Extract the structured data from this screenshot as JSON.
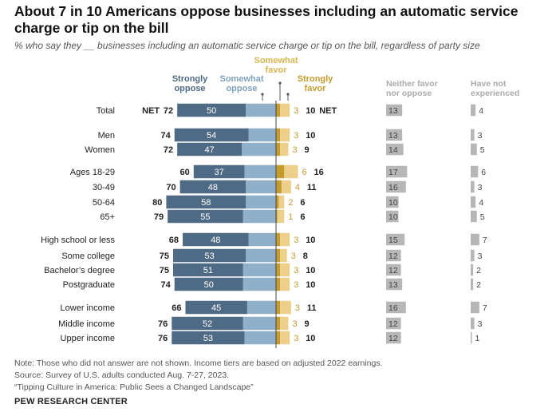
{
  "title": "About 7 in 10 Americans oppose businesses including an automatic service charge or tip on the bill",
  "subtitle": "% who say they __ businesses including an automatic service charge or tip on the bill, regardless of party size",
  "legend": {
    "strongly_oppose": "Strongly oppose",
    "somewhat_oppose": "Somewhat oppose",
    "somewhat_favor": "Somewhat favor",
    "strongly_favor": "Strongly favor",
    "neither": "Neither favor nor oppose",
    "not_experienced": "Have not experienced"
  },
  "net_label": "NET",
  "colors": {
    "strongly_oppose": "#4f6a84",
    "somewhat_oppose": "#8fb0c8",
    "somewhat_favor": "#ecd08a",
    "strongly_favor": "#c59b2e",
    "gray_bar": "#b7b7b7",
    "oppose_label": "#4f6a84",
    "somewhat_oppose_label": "#7fa3bd",
    "somewhat_favor_label": "#d9b553",
    "strongly_favor_label": "#c59b2e"
  },
  "chart_data": {
    "type": "bar",
    "categories": [
      "Total",
      "Men",
      "Women",
      "Ages 18-29",
      "30-49",
      "50-64",
      "65+",
      "High school or less",
      "Some college",
      "Bachelor’s degree",
      "Postgraduate",
      "Lower income",
      "Middle income",
      "Upper income"
    ],
    "series": [
      {
        "name": "Strongly oppose",
        "values": [
          50,
          54,
          47,
          37,
          48,
          58,
          55,
          48,
          53,
          51,
          50,
          45,
          52,
          53
        ]
      },
      {
        "name": "Somewhat oppose",
        "values": [
          22,
          20,
          25,
          23,
          22,
          22,
          24,
          20,
          22,
          24,
          24,
          21,
          24,
          23
        ]
      },
      {
        "name": "Somewhat favor",
        "values": [
          7,
          7,
          6,
          10,
          7,
          4,
          5,
          7,
          5,
          7,
          7,
          8,
          6,
          7
        ]
      },
      {
        "name": "Strongly favor",
        "values": [
          3,
          3,
          3,
          6,
          4,
          2,
          1,
          3,
          3,
          3,
          3,
          3,
          3,
          3
        ]
      },
      {
        "name": "Neither favor nor oppose",
        "values": [
          13,
          13,
          14,
          17,
          16,
          10,
          10,
          15,
          12,
          12,
          13,
          16,
          12,
          12
        ]
      },
      {
        "name": "Have not experienced",
        "values": [
          4,
          3,
          5,
          6,
          3,
          4,
          5,
          7,
          3,
          2,
          2,
          7,
          3,
          1
        ]
      }
    ],
    "net_oppose": [
      72,
      74,
      72,
      60,
      70,
      80,
      79,
      68,
      75,
      75,
      74,
      66,
      76,
      76
    ],
    "net_favor": [
      10,
      10,
      9,
      16,
      11,
      6,
      6,
      10,
      8,
      10,
      10,
      11,
      9,
      10
    ]
  },
  "notes": {
    "note": "Note: Those who did not answer are not shown. Income tiers are based on adjusted 2022 earnings.",
    "source": "Source: Survey of U.S. adults conducted Aug. 7-27, 2023.",
    "report": "“Tipping Culture in America: Public Sees a Changed Landscape”",
    "brand": "PEW RESEARCH CENTER"
  }
}
